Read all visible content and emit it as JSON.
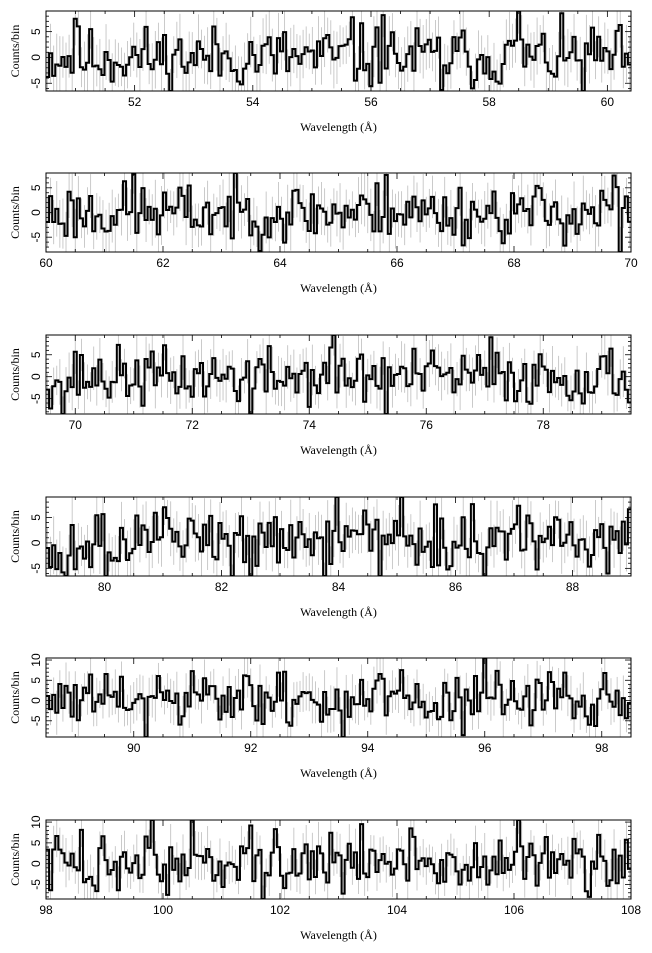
{
  "chart_data": [
    {
      "type": "line",
      "xlabel": "Wavelength (Å)",
      "ylabel": "Counts/bin",
      "xlim": [
        50.5,
        60.4
      ],
      "ylim": [
        -6.5,
        9
      ],
      "xticks": [
        52,
        54,
        56,
        58,
        60
      ],
      "yticks": [
        -5,
        0,
        5
      ],
      "seed": 11,
      "amplitude": 3.0,
      "spikes": [
        [
          51.0,
          7.5
        ],
        [
          55.7,
          7.8
        ],
        [
          56.2,
          8.2
        ],
        [
          57.2,
          -6.3
        ],
        [
          58.5,
          9
        ],
        [
          59.6,
          -6.5
        ]
      ]
    },
    {
      "type": "line",
      "xlabel": "Wavelength (Å)",
      "ylabel": "Counts/bin",
      "xlim": [
        60,
        70
      ],
      "ylim": [
        -8,
        8
      ],
      "xticks": [
        60,
        62,
        64,
        66,
        68,
        70
      ],
      "yticks": [
        -5,
        0,
        5
      ],
      "seed": 23,
      "amplitude": 3.0,
      "spikes": [
        [
          61.5,
          7.8
        ],
        [
          65.8,
          7.6
        ],
        [
          69.7,
          7.5
        ],
        [
          69.8,
          -8
        ]
      ]
    },
    {
      "type": "line",
      "xlabel": "Wavelength (Å)",
      "ylabel": "Counts/bin",
      "xlim": [
        69.5,
        79.5
      ],
      "ylim": [
        -8.5,
        9.5
      ],
      "xticks": [
        70,
        72,
        74,
        76,
        78
      ],
      "yticks": [
        -5,
        0,
        5
      ],
      "seed": 37,
      "amplitude": 3.2,
      "spikes": [
        [
          69.8,
          -8.5
        ],
        [
          73.0,
          -8.5
        ],
        [
          74.4,
          9.5
        ],
        [
          75.3,
          -8.5
        ],
        [
          77.1,
          9.0
        ]
      ]
    },
    {
      "type": "line",
      "xlabel": "Wavelength (Å)",
      "ylabel": "Counts/bin",
      "xlim": [
        79,
        89
      ],
      "ylim": [
        -6.5,
        9
      ],
      "xticks": [
        80,
        82,
        84,
        86,
        88
      ],
      "yticks": [
        -5,
        0,
        5
      ],
      "seed": 49,
      "amplitude": 3.3,
      "spikes": [
        [
          81.0,
          7.0
        ],
        [
          85.1,
          9.0
        ],
        [
          84.7,
          -6.5
        ],
        [
          86.5,
          -6.5
        ],
        [
          88.6,
          -6.0
        ]
      ]
    },
    {
      "type": "line",
      "xlabel": "Wavelength (Å)",
      "ylabel": "Counts/bin",
      "xlim": [
        88.5,
        98.5
      ],
      "ylim": [
        -9,
        10.5
      ],
      "xticks": [
        90,
        92,
        94,
        96,
        98
      ],
      "yticks": [
        -5,
        0,
        5,
        10
      ],
      "seed": 61,
      "amplitude": 3.5,
      "spikes": [
        [
          90.2,
          -9
        ],
        [
          93.6,
          -9
        ],
        [
          96.0,
          10.5
        ],
        [
          97.1,
          7.0
        ]
      ]
    },
    {
      "type": "line",
      "xlabel": "Wavelength (Å)",
      "ylabel": "Counts/bin",
      "xlim": [
        98,
        108
      ],
      "ylim": [
        -8.5,
        10.5
      ],
      "xticks": [
        98,
        100,
        102,
        104,
        106,
        108
      ],
      "yticks": [
        -5,
        0,
        5,
        10
      ],
      "seed": 73,
      "amplitude": 3.6,
      "spikes": [
        [
          99.8,
          10.5
        ],
        [
          100.5,
          10.5
        ],
        [
          101.7,
          -8.5
        ],
        [
          103.4,
          9.5
        ],
        [
          106.1,
          10.5
        ],
        [
          107.3,
          -8.0
        ]
      ]
    }
  ]
}
